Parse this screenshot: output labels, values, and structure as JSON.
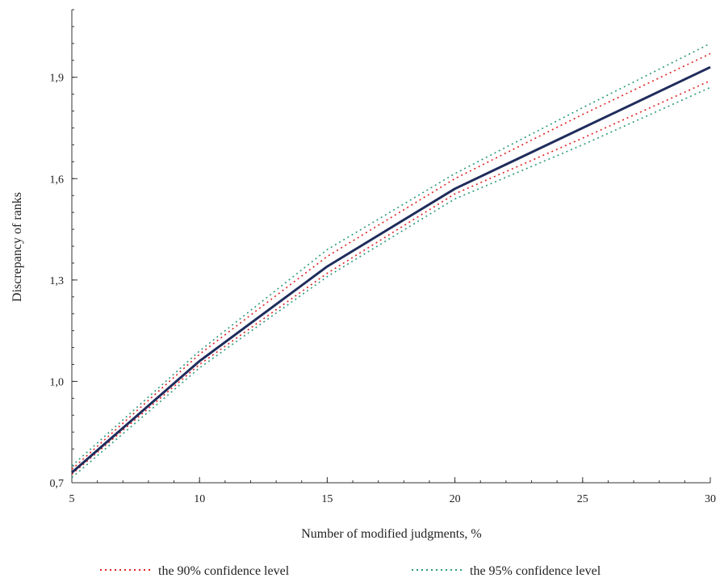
{
  "chart_data": {
    "type": "line",
    "xlabel": "Number of modified judgments, %",
    "ylabel": "Discrepancy of ranks",
    "xlim": [
      5,
      30
    ],
    "ylim": [
      0.7,
      2.1
    ],
    "x_ticks": [
      5,
      10,
      15,
      20,
      25,
      30
    ],
    "y_ticks": [
      0.7,
      1.0,
      1.3,
      1.6,
      1.9
    ],
    "x_tick_labels": [
      "5",
      "10",
      "15",
      "20",
      "25",
      "30"
    ],
    "y_tick_labels": [
      "0,7",
      "1,0",
      "1,3",
      "1,6",
      "1,9"
    ],
    "grid": false,
    "legend_position": "bottom",
    "x": [
      5,
      10,
      15,
      20,
      25,
      30
    ],
    "series": [
      {
        "role": "main",
        "color": "#1f2d5c",
        "style": "solid",
        "values": [
          0.73,
          1.06,
          1.34,
          1.57,
          1.75,
          1.93
        ]
      },
      {
        "name": "the 90% confidence level",
        "role": "upper",
        "color": "#e02020",
        "style": "dotted",
        "values": [
          0.74,
          1.08,
          1.37,
          1.6,
          1.79,
          1.97
        ]
      },
      {
        "name": "the 90% confidence level",
        "role": "lower",
        "color": "#e02020",
        "style": "dotted",
        "values": [
          0.725,
          1.05,
          1.32,
          1.555,
          1.72,
          1.89
        ]
      },
      {
        "name": "the 95% confidence level",
        "role": "upper",
        "color": "#2a9a7a",
        "style": "dotted",
        "values": [
          0.75,
          1.09,
          1.39,
          1.615,
          1.81,
          2.0
        ]
      },
      {
        "name": "the 95% confidence level",
        "role": "lower",
        "color": "#2a9a7a",
        "style": "dotted",
        "values": [
          0.715,
          1.04,
          1.31,
          1.54,
          1.7,
          1.87
        ]
      }
    ],
    "legend": [
      {
        "label": "the 90% confidence level",
        "color": "#e02020"
      },
      {
        "label": "the 95% confidence level",
        "color": "#2a9a7a"
      }
    ]
  }
}
